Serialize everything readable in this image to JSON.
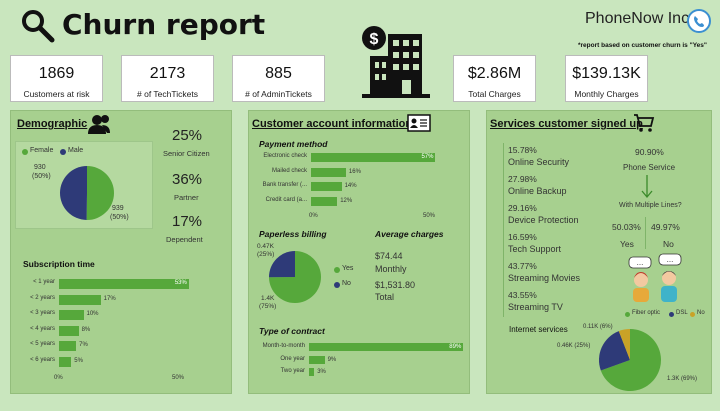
{
  "header": {
    "title": "Churn report",
    "brand": "PhoneNow Inc.",
    "note": "*report based on customer churn is \"Yes\""
  },
  "kpis": [
    {
      "value": "1869",
      "label": "Customers at risk"
    },
    {
      "value": "2173",
      "label": "# of TechTickets"
    },
    {
      "value": "885",
      "label": "# of AdminTickets"
    },
    {
      "value": "$2.86M",
      "label": "Total Charges"
    },
    {
      "value": "$139.13K",
      "label": "Monthly Charges"
    }
  ],
  "demographic": {
    "title": "Demographic",
    "legend_female": "Female",
    "legend_male": "Male",
    "label_male": "930",
    "label_male_pct": "(50%)",
    "label_female": "939",
    "label_female_pct": "(50%)",
    "senior_value": "25%",
    "senior_label": "Senior Citizen",
    "partner_value": "36%",
    "partner_label": "Partner",
    "dependent_value": "17%",
    "dependent_label": "Dependent",
    "subscription_title": "Subscription time",
    "axis_0": "0%",
    "axis_50": "50%"
  },
  "account": {
    "title": "Customer account information",
    "payment_title": "Payment method",
    "paperless_title": "Paperless billing",
    "paperless_yes": "Yes",
    "paperless_no": "No",
    "paperless_no_label": "0.47K",
    "paperless_no_pct": "(25%)",
    "paperless_yes_label": "1.4K",
    "paperless_yes_pct": "(75%)",
    "avg_title": "Average charges",
    "avg_monthly_value": "$74.44",
    "avg_monthly_label": "Monthly",
    "avg_total_value": "$1,531.80",
    "avg_total_label": "Total",
    "contract_title": "Type of contract",
    "axis_0": "0%",
    "axis_50": "50%"
  },
  "services": {
    "title": "Services customer signed up",
    "items": [
      {
        "pct": "15.78%",
        "name": "Online Security"
      },
      {
        "pct": "27.98%",
        "name": "Online Backup"
      },
      {
        "pct": "29.16%",
        "name": "Device Protection"
      },
      {
        "pct": "16.59%",
        "name": "Tech Support"
      },
      {
        "pct": "43.77%",
        "name": "Streaming Movies"
      },
      {
        "pct": "43.55%",
        "name": "Streaming TV"
      }
    ],
    "phone_pct": "90.90%",
    "phone_label": "Phone Service",
    "multi_label": "With Multiple Lines?",
    "multi_yes_pct": "50.03%",
    "multi_yes": "Yes",
    "multi_no_pct": "49.97%",
    "multi_no": "No",
    "internet_title": "Internet services",
    "legend_fiber": "Fiber optic",
    "legend_dsl": "DSL",
    "legend_no": "No",
    "label_no": "0.11K (6%)",
    "label_dsl": "0.46K (25%)",
    "label_fiber": "1.3K (69%)"
  },
  "colors": {
    "green": "#56a83b",
    "navy": "#2e3a78",
    "gold": "#c9a227",
    "panel": "#a7d08f",
    "background": "#c9e6be"
  },
  "icons": [
    "search-icon",
    "building-dollar-icon",
    "phone-icon",
    "users-icon",
    "id-card-icon",
    "cart-icon",
    "chat-people-icon",
    "arrow-down-icon"
  ],
  "chart_data": [
    {
      "type": "pie",
      "categories": [
        "Female",
        "Male"
      ],
      "values": [
        939,
        930
      ]
    },
    {
      "type": "bar",
      "title": "Subscription time",
      "categories": [
        "< 1 year",
        "< 2 years",
        "< 3 years",
        "< 4 years",
        "< 5 years",
        "< 6 years"
      ],
      "values": [
        53,
        17,
        10,
        8,
        7,
        5
      ],
      "labels": [
        "53%",
        "17%",
        "10%",
        "8%",
        "7%",
        "5%"
      ],
      "xlim": [
        0,
        60
      ]
    },
    {
      "type": "bar",
      "title": "Payment method",
      "categories": [
        "Electronic check",
        "Mailed check",
        "Bank transfer (...",
        "Credit card (a..."
      ],
      "values": [
        57,
        16,
        14,
        12
      ],
      "labels": [
        "57%",
        "16%",
        "14%",
        "12%"
      ],
      "xlim": [
        0,
        60
      ]
    },
    {
      "type": "pie",
      "title": "Paperless billing",
      "categories": [
        "Yes",
        "No"
      ],
      "values": [
        1400,
        470
      ]
    },
    {
      "type": "bar",
      "title": "Type of contract",
      "categories": [
        "Month-to-month",
        "One year",
        "Two year"
      ],
      "values": [
        89,
        9,
        3
      ],
      "labels": [
        "89%",
        "9%",
        "3%"
      ],
      "xlim": [
        0,
        90
      ]
    },
    {
      "type": "pie",
      "title": "Internet services",
      "categories": [
        "Fiber optic",
        "DSL",
        "No"
      ],
      "values": [
        1300,
        460,
        110
      ]
    }
  ]
}
